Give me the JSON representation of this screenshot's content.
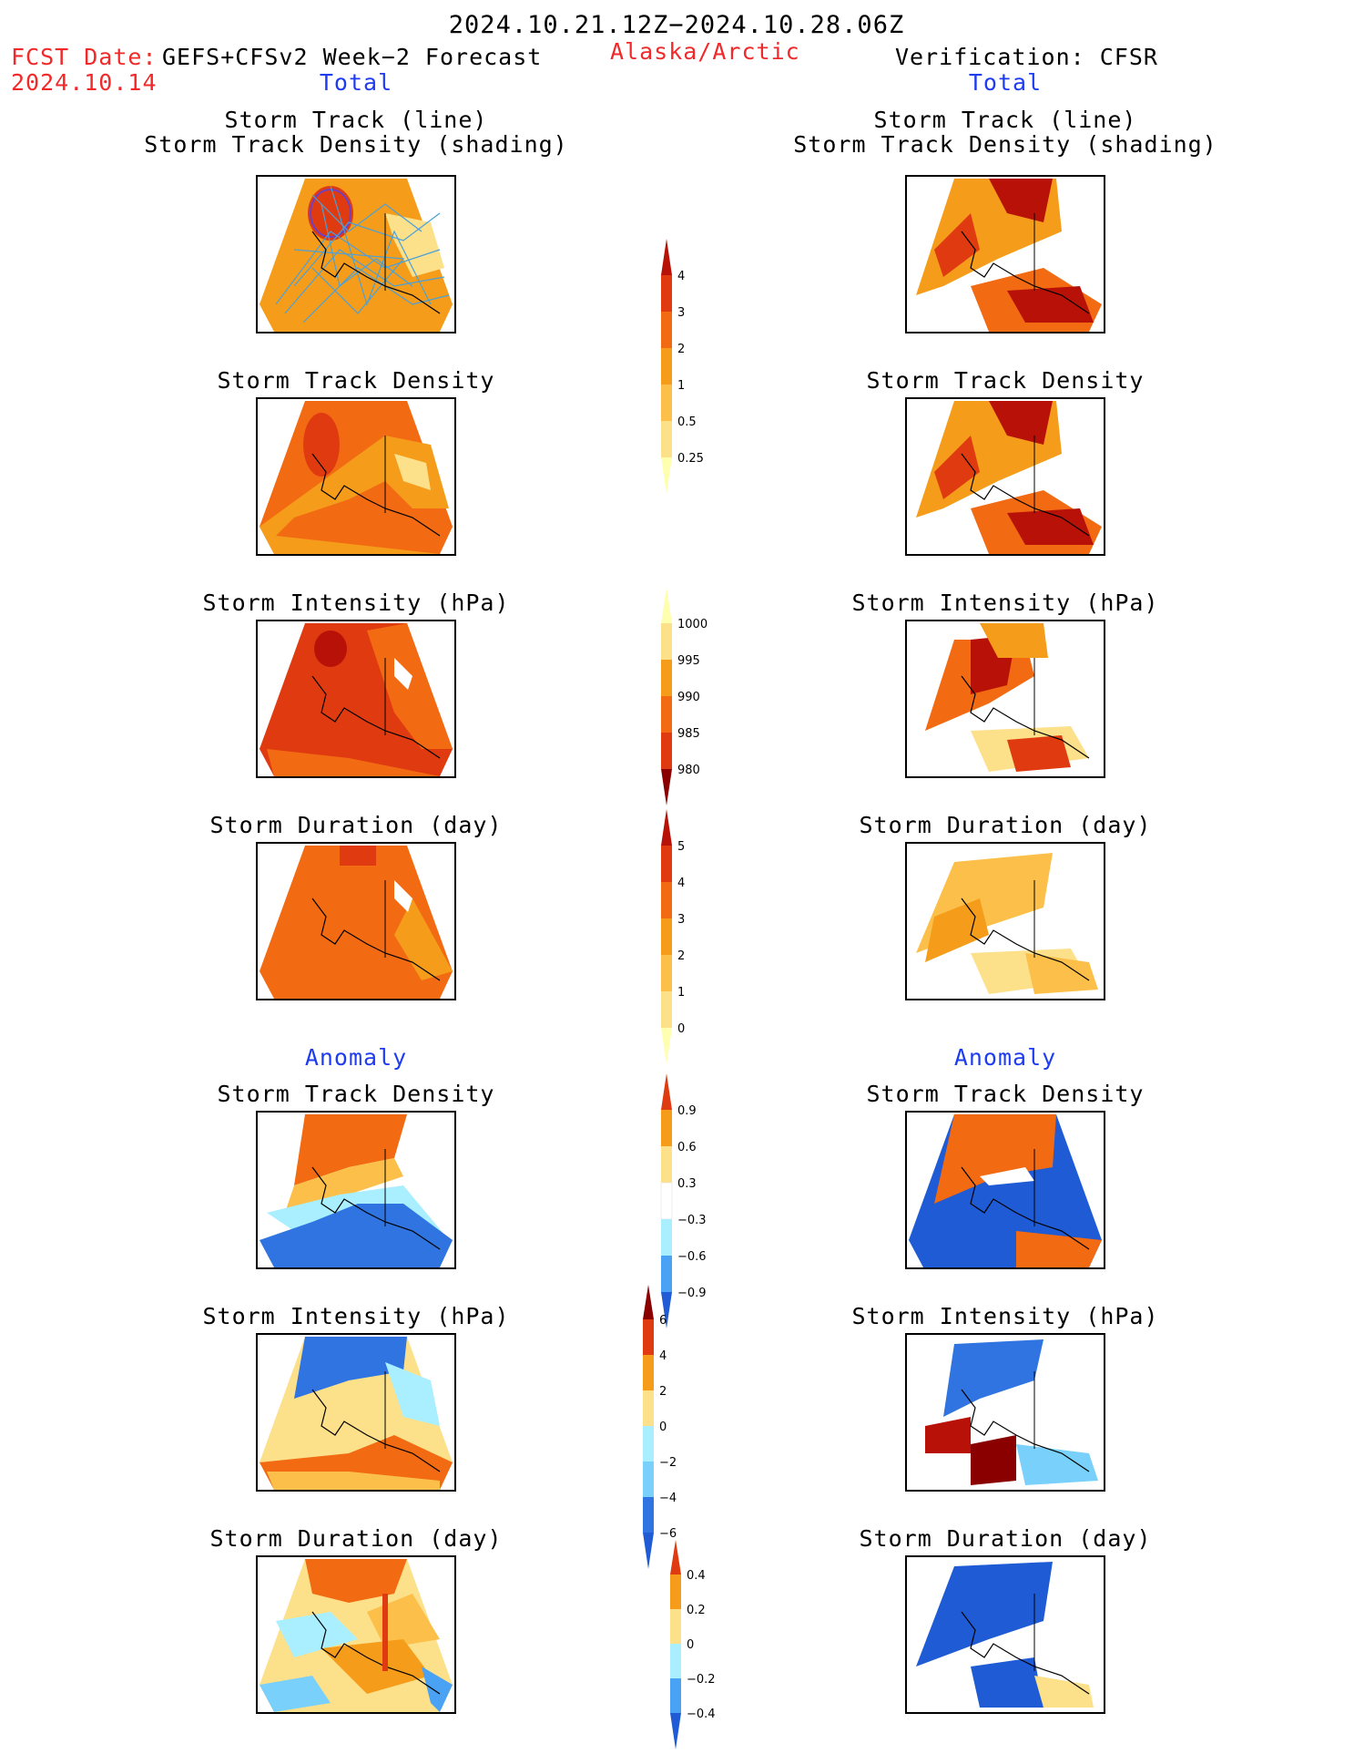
{
  "header": {
    "period": "2024.10.21.12Z−2024.10.28.06Z",
    "fcst_date_label": "FCST Date:",
    "fcst_date": "2024.10.14",
    "forecast_name": "GEFS+CFSv2 Week−2 Forecast",
    "region": "Alaska/Arctic",
    "verification": "Verification: CFSR"
  },
  "sections": {
    "total_left": "Total",
    "total_right": "Total",
    "anomaly_left": "Anomaly",
    "anomaly_right": "Anomaly"
  },
  "panel_titles": {
    "track_line": "Storm Track (line)",
    "track_shading": "Storm Track Density (shading)",
    "density": "Storm Track Density",
    "intensity": "Storm Intensity (hPa)",
    "duration": "Storm Duration (day)"
  },
  "colorbars": {
    "density_total": [
      "0.25",
      "0.5",
      "1",
      "2",
      "3",
      "4"
    ],
    "intensity_total": [
      "980",
      "985",
      "990",
      "995",
      "1000"
    ],
    "duration_total": [
      "0",
      "1",
      "2",
      "3",
      "4",
      "5"
    ],
    "density_anom": [
      "−0.9",
      "−0.6",
      "−0.3",
      "0.3",
      "0.6",
      "0.9"
    ],
    "intensity_anom": [
      "−6",
      "−4",
      "−2",
      "0",
      "2",
      "4",
      "6"
    ],
    "duration_anom": [
      "−0.4",
      "−0.2",
      "0",
      "0.2",
      "0.4"
    ]
  },
  "colors": {
    "warm": [
      "#ffffb0",
      "#fde08a",
      "#fcc04a",
      "#f59d1a",
      "#f26a12",
      "#e03b10",
      "#b81208",
      "#8a0000"
    ],
    "cool": [
      "#a9efff",
      "#78d0fb",
      "#4aa2f5",
      "#2f74e0",
      "#1e5bd5"
    ],
    "track_line": "#4aa0d8"
  }
}
